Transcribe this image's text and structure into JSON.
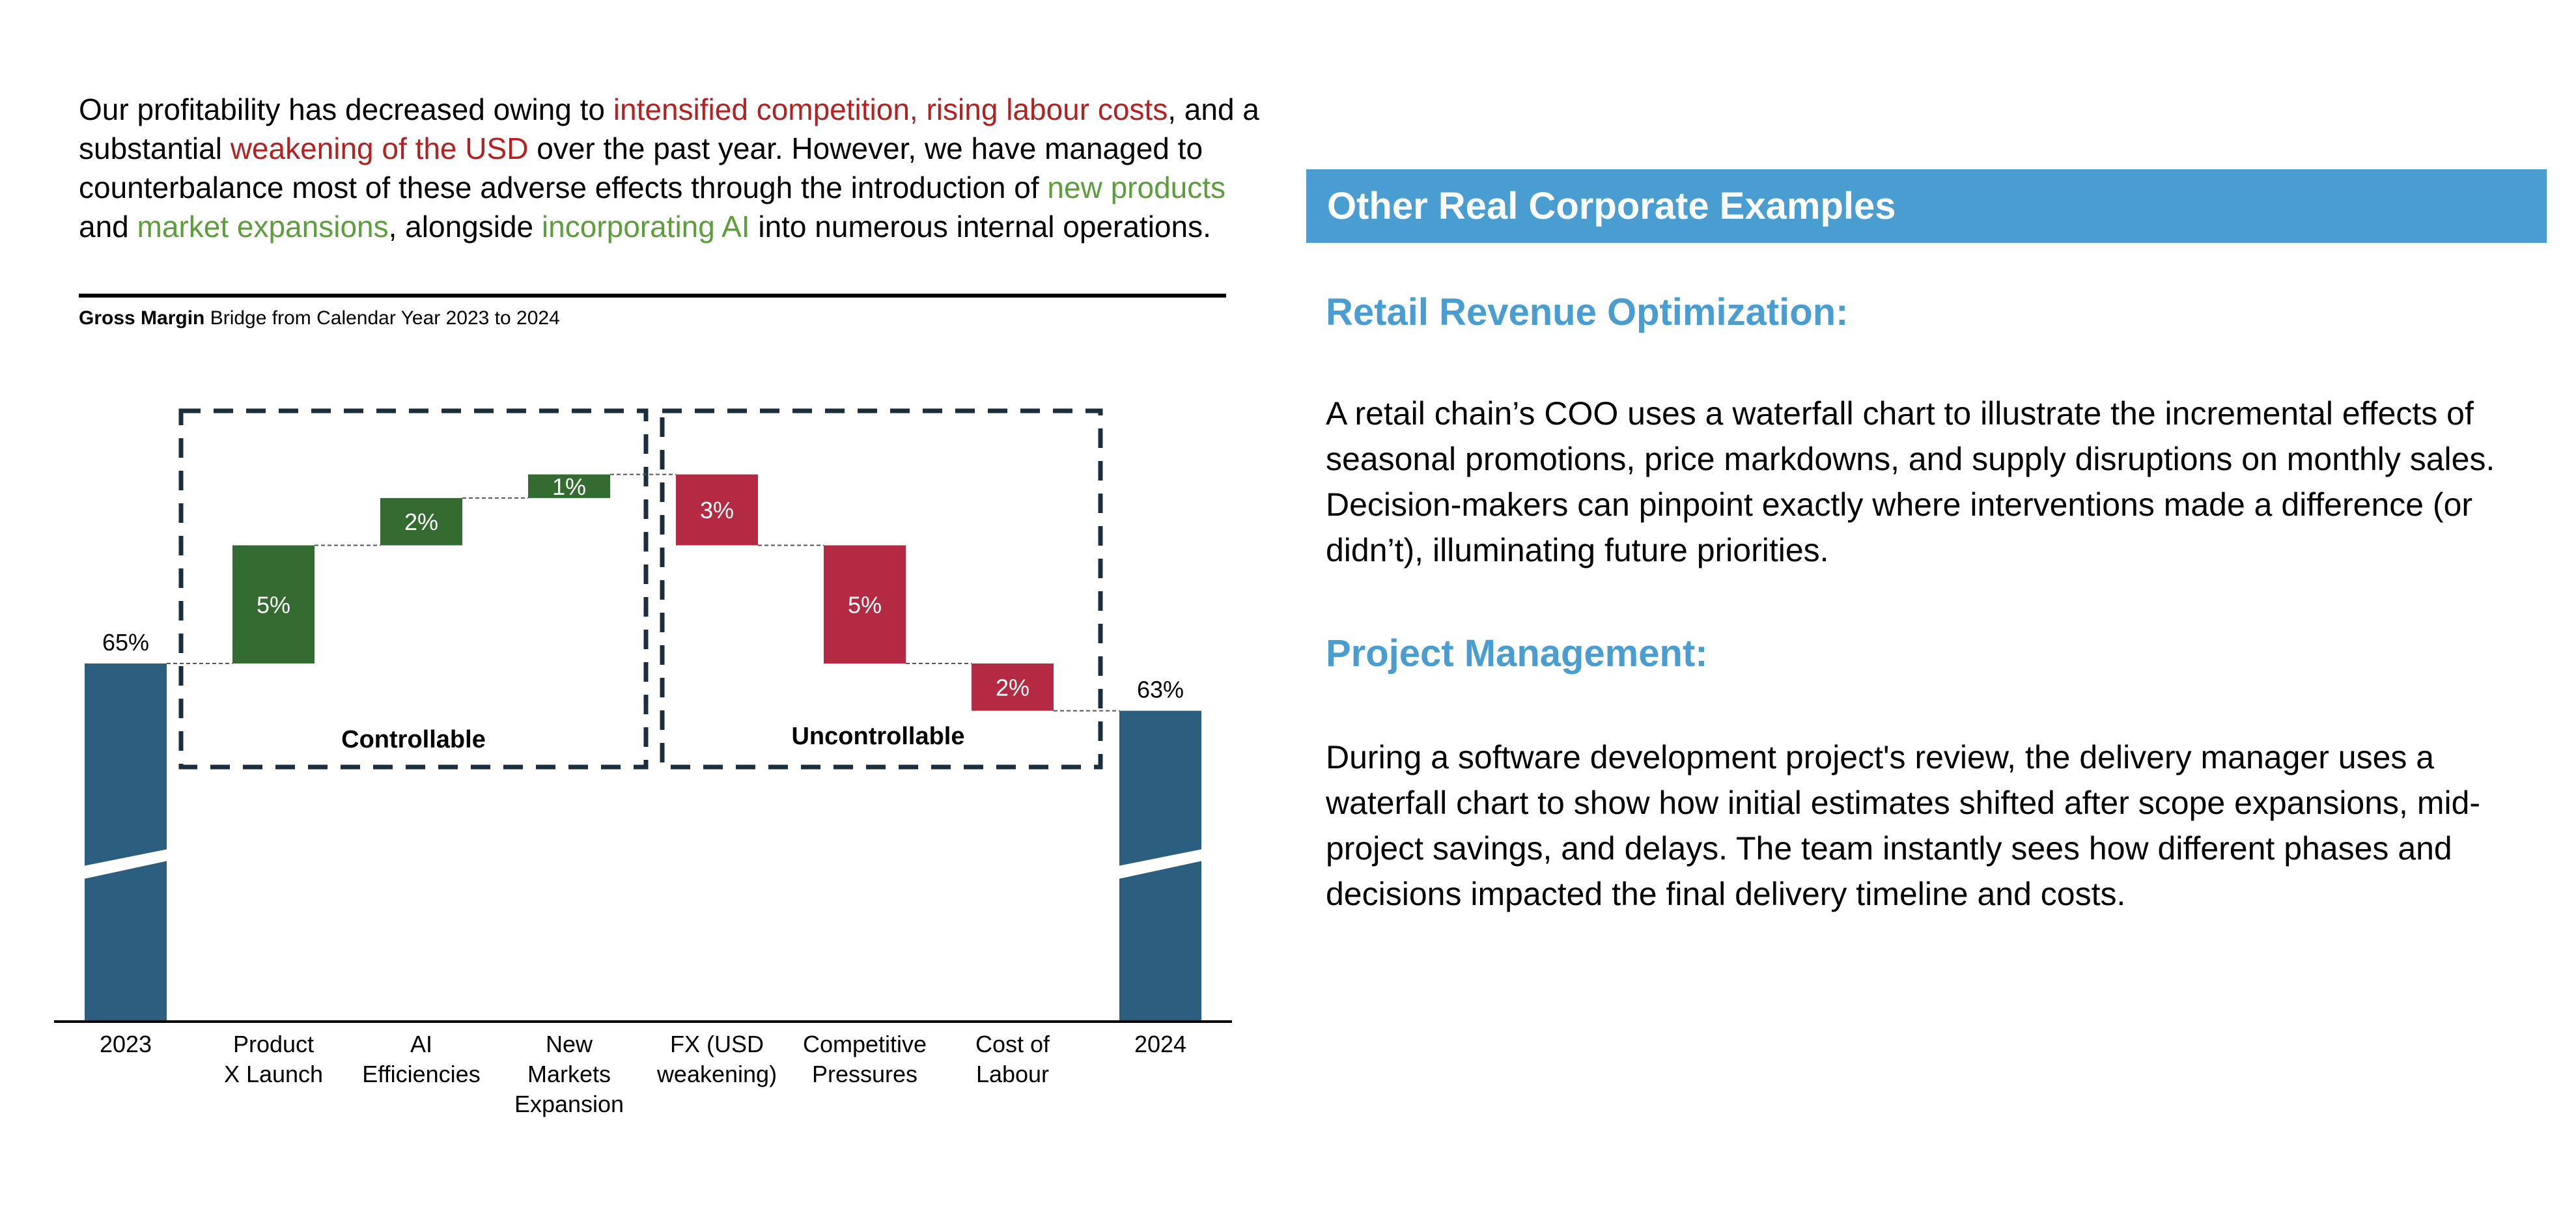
{
  "intro": {
    "segments": [
      {
        "text": "Our profitability has decreased owing to ",
        "tone": "plain"
      },
      {
        "text": "intensified competition, rising labour costs",
        "tone": "negative"
      },
      {
        "text": ", and a substantial ",
        "tone": "plain"
      },
      {
        "text": "weakening of the USD",
        "tone": "negative"
      },
      {
        "text": " over the past year. However, we have managed to counterbalance most of these adverse effects through the introduction of ",
        "tone": "plain"
      },
      {
        "text": "new products",
        "tone": "positive"
      },
      {
        "text": " and ",
        "tone": "plain"
      },
      {
        "text": "market expansions",
        "tone": "positive"
      },
      {
        "text": ", alongside ",
        "tone": "plain"
      },
      {
        "text": "incorporating AI",
        "tone": "positive"
      },
      {
        "text": " into numerous internal operations.",
        "tone": "plain"
      }
    ]
  },
  "chart_subtitle": {
    "bold": "Gross Margin",
    "rest": " Bridge from Calendar Year 2023 to 2024"
  },
  "chart_data": {
    "type": "bar",
    "subtype": "waterfall",
    "title": "Gross Margin Bridge from Calendar Year 2023 to 2024",
    "categories": [
      "2023",
      "Product\nX Launch",
      "AI\nEfficiencies",
      "New\nMarkets\nExpansion",
      "FX (USD\nweakening)",
      "Competitive\nPressures",
      "Cost of\nLabour",
      "2024"
    ],
    "values": [
      65,
      5,
      2,
      1,
      -3,
      -5,
      -2,
      63
    ],
    "kinds": [
      "total",
      "increase",
      "increase",
      "increase",
      "decrease",
      "decrease",
      "decrease",
      "total"
    ],
    "labels": [
      "65%",
      "5%",
      "2%",
      "1%",
      "3%",
      "5%",
      "2%",
      "63%"
    ],
    "groups": [
      {
        "label": "Controllable",
        "from": 1,
        "to": 3
      },
      {
        "label": "Uncontrollable",
        "from": 4,
        "to": 6
      }
    ],
    "axis_break": true,
    "colors": {
      "total": "#2c5f7f",
      "increase": "#336b31",
      "decrease": "#b52a43"
    }
  },
  "right": {
    "header": "Other Real Corporate Examples",
    "examples": [
      {
        "title": "Retail Revenue Optimization:",
        "body": "A retail chain’s COO uses a waterfall chart to illustrate the incremental effects of seasonal promotions, price markdowns, and supply disruptions on monthly sales. Decision-makers can pinpoint exactly where interventions made a difference (or didn’t), illuminating future priorities."
      },
      {
        "title": "Project Management:",
        "body": "During a software development project's review, the delivery manager uses a waterfall chart to show how initial estimates shifted after scope expansions, mid-project savings, and delays. The team instantly sees how different phases and decisions impacted the final delivery timeline and costs."
      }
    ]
  }
}
